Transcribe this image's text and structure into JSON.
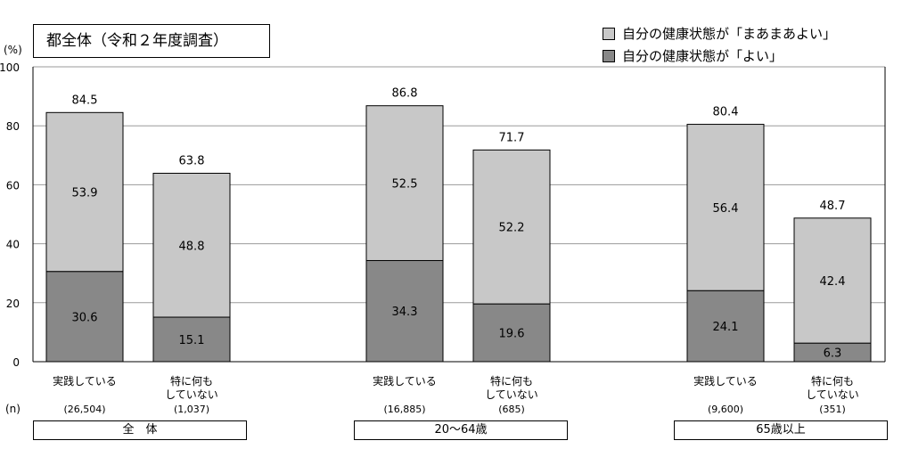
{
  "title": "都全体（令和２年度調査）",
  "legend": [
    {
      "label": "自分の健康状態が「まあまあよい」",
      "color": "#c8c8c8"
    },
    {
      "label": "自分の健康状態が「よい」",
      "color": "#888888"
    }
  ],
  "axis": {
    "y_unit": "(%)",
    "n_label": "(n)"
  },
  "chart_data": {
    "type": "bar",
    "stacked": true,
    "ylim": [
      0,
      100
    ],
    "yticks": [
      0,
      20,
      40,
      60,
      80,
      100
    ],
    "grid": true,
    "legend_position": "top-right",
    "groups": [
      {
        "label": "全　体",
        "bars": [
          {
            "label": [
              "実践している"
            ],
            "n": "(26,504)",
            "good": 30.6,
            "fair": 53.9,
            "total": 84.5
          },
          {
            "label": [
              "特に何も",
              "していない"
            ],
            "n": "(1,037)",
            "good": 15.1,
            "fair": 48.8,
            "total": 63.8
          }
        ]
      },
      {
        "label": "20～64歳",
        "bars": [
          {
            "label": [
              "実践している"
            ],
            "n": "(16,885)",
            "good": 34.3,
            "fair": 52.5,
            "total": 86.8
          },
          {
            "label": [
              "特に何も",
              "していない"
            ],
            "n": "(685)",
            "good": 19.6,
            "fair": 52.2,
            "total": 71.7
          }
        ]
      },
      {
        "label": "65歳以上",
        "bars": [
          {
            "label": [
              "実践している"
            ],
            "n": "(9,600)",
            "good": 24.1,
            "fair": 56.4,
            "total": 80.4
          },
          {
            "label": [
              "特に何も",
              "していない"
            ],
            "n": "(351)",
            "good": 6.3,
            "fair": 42.4,
            "total": 48.7
          }
        ]
      }
    ],
    "series": [
      {
        "name": "自分の健康状態が「よい」",
        "key": "good"
      },
      {
        "name": "自分の健康状態が「まあまあよい」",
        "key": "fair"
      }
    ]
  }
}
